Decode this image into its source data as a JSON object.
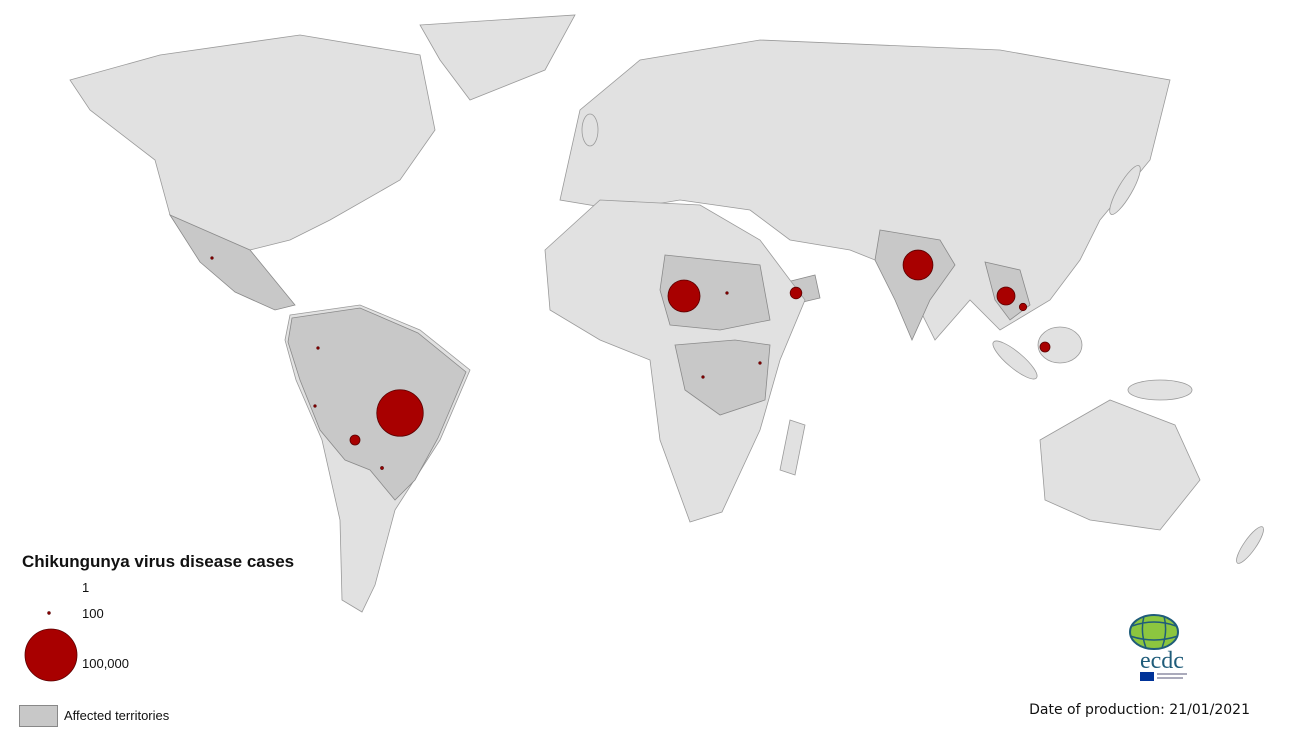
{
  "legend": {
    "title": "Chikungunya virus disease cases",
    "sizes": [
      {
        "label": "1",
        "value": 1
      },
      {
        "label": "100",
        "value": 100
      },
      {
        "label": "100,000",
        "value": 100000
      }
    ],
    "affected_label": "Affected territories"
  },
  "date_of_production": "Date of production: 21/01/2021",
  "logo": {
    "text": "ecdc"
  },
  "colors": {
    "land": "#e1e1e1",
    "affected": "#c8c8c8",
    "bubble": "#a80000"
  },
  "cases": [
    {
      "location": "Brazil",
      "value": 80000
    },
    {
      "location": "Chad",
      "value": 38000
    },
    {
      "location": "India",
      "value": 33000
    },
    {
      "location": "Thailand",
      "value": 12000
    },
    {
      "location": "Yemen",
      "value": 5000
    },
    {
      "location": "Malaysia",
      "value": 3700
    },
    {
      "location": "Bolivia",
      "value": 3700
    },
    {
      "location": "Cambodia",
      "value": 2000
    },
    {
      "location": "Colombia",
      "value": 150
    },
    {
      "location": "Peru",
      "value": 100
    },
    {
      "location": "Paraguay",
      "value": 300
    },
    {
      "location": "Sudan",
      "value": 100
    },
    {
      "location": "DR Congo",
      "value": 100
    },
    {
      "location": "Kenya",
      "value": 100
    },
    {
      "location": "Mexico",
      "value": 100
    }
  ]
}
